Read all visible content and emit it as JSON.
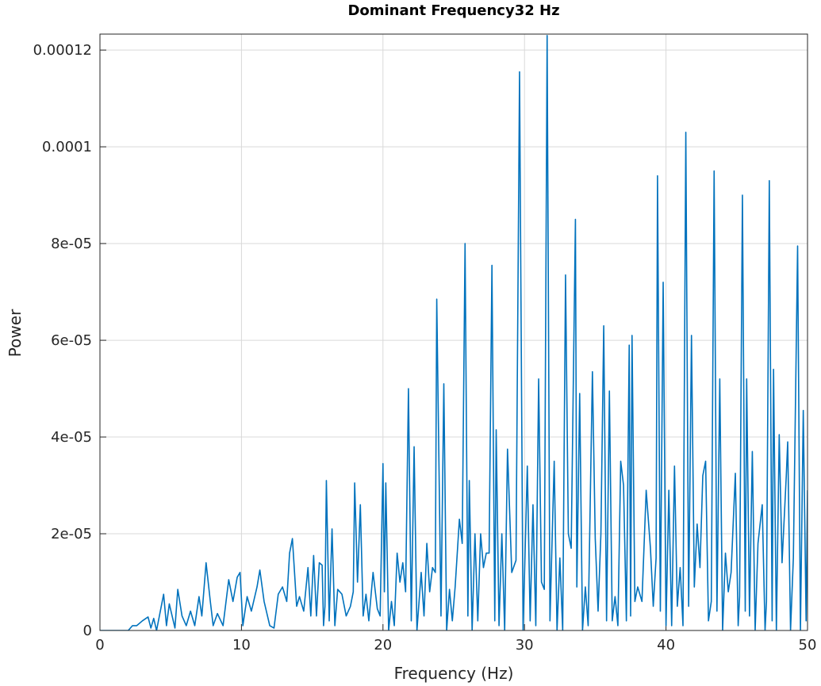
{
  "chart_data": {
    "type": "line",
    "title": "Dominant Frequency32 Hz",
    "xlabel": "Frequency (Hz)",
    "ylabel": "Power",
    "color": "#0072bd",
    "grid": true,
    "xlim": [
      0,
      50
    ],
    "xticks": [
      0,
      10,
      20,
      30,
      40,
      50
    ],
    "ylim": [
      0,
      0.0001233
    ],
    "yticks": [
      0,
      {
        "value": 2e-05,
        "label": "2e-05"
      },
      {
        "value": 4e-05,
        "label": "4e-05"
      },
      {
        "value": 6e-05,
        "label": "6e-05"
      },
      {
        "value": 8e-05,
        "label": "8e-05"
      },
      0.0001,
      0.00012
    ],
    "x": [
      0,
      2,
      2.3,
      2.6,
      3,
      3.4,
      3.6,
      3.8,
      4,
      4.5,
      4.7,
      4.9,
      5.1,
      5.3,
      5.5,
      5.8,
      6.1,
      6.4,
      6.7,
      7,
      7.2,
      7.5,
      7.8,
      8,
      8.3,
      8.7,
      9.1,
      9.4,
      9.7,
      9.9,
      10.1,
      10.4,
      10.7,
      11.1,
      11.3,
      11.6,
      12,
      12.3,
      12.6,
      12.9,
      13.2,
      13.4,
      13.6,
      13.9,
      14.1,
      14.4,
      14.7,
      14.9,
      15.1,
      15.3,
      15.5,
      15.7,
      15.8,
      15.9,
      16,
      16.2,
      16.4,
      16.6,
      16.8,
      17.1,
      17.4,
      17.7,
      17.9,
      18,
      18.2,
      18.4,
      18.6,
      18.8,
      19,
      19.3,
      19.6,
      19.8,
      20,
      20.1,
      20.2,
      20.4,
      20.6,
      20.8,
      21,
      21.2,
      21.4,
      21.6,
      21.8,
      22,
      22.2,
      22.4,
      22.7,
      22.9,
      23.1,
      23.3,
      23.5,
      23.7,
      23.8,
      24.1,
      24.3,
      24.5,
      24.7,
      24.9,
      25.1,
      25.4,
      25.6,
      25.8,
      26,
      26.1,
      26.3,
      26.5,
      26.7,
      26.9,
      27.1,
      27.3,
      27.5,
      27.7,
      27.9,
      28,
      28.2,
      28.4,
      28.6,
      28.8,
      29.1,
      29.4,
      29.65,
      29.9,
      30.2,
      30.4,
      30.6,
      30.8,
      31,
      31.2,
      31.4,
      31.6,
      31.8,
      32.1,
      32.3,
      32.5,
      32.7,
      32.9,
      33.1,
      33.3,
      33.6,
      33.7,
      33.9,
      34.1,
      34.3,
      34.5,
      34.8,
      35,
      35.2,
      35.4,
      35.6,
      35.8,
      36,
      36.2,
      36.4,
      36.6,
      36.8,
      37,
      37.2,
      37.4,
      37.5,
      37.6,
      37.8,
      38,
      38.3,
      38.6,
      38.9,
      39.1,
      39.3,
      39.4,
      39.6,
      39.8,
      40,
      40.2,
      40.4,
      40.6,
      40.8,
      41,
      41.2,
      41.4,
      41.6,
      41.8,
      42,
      42.2,
      42.4,
      42.6,
      42.8,
      43,
      43.2,
      43.4,
      43.6,
      43.8,
      44,
      44.2,
      44.4,
      44.6,
      44.9,
      45.1,
      45.2,
      45.4,
      45.6,
      45.7,
      45.9,
      46.1,
      46.3,
      46.5,
      46.8,
      47,
      47.1,
      47.3,
      47.5,
      47.6,
      47.8,
      48,
      48.2,
      48.5,
      48.6,
      48.8,
      49,
      49.3,
      49.5,
      49.7,
      49.9,
      50
    ],
    "values": [
      0,
      0,
      1e-06,
      1e-06,
      2e-06,
      2.8e-06,
      5e-07,
      2.5e-06,
      0,
      7.5e-06,
      1e-06,
      5.5e-06,
      3e-06,
      5e-07,
      8.5e-06,
      3e-06,
      1e-06,
      4e-06,
      1e-06,
      7e-06,
      3e-06,
      1.4e-05,
      6e-06,
      1e-06,
      3.5e-06,
      1e-06,
      1.05e-05,
      6e-06,
      1.1e-05,
      1.2e-05,
      1e-06,
      7e-06,
      4e-06,
      9e-06,
      1.25e-05,
      6e-06,
      1e-06,
      5e-07,
      7.5e-06,
      9e-06,
      6e-06,
      1.6e-05,
      1.9e-05,
      5e-06,
      7e-06,
      4e-06,
      1.3e-05,
      3e-06,
      1.55e-05,
      3e-06,
      1.4e-05,
      1.35e-05,
      1e-06,
      5e-06,
      3.1e-05,
      2e-06,
      2.1e-05,
      1e-06,
      8.5e-06,
      7.5e-06,
      3e-06,
      5e-06,
      8e-06,
      3.05e-05,
      1e-05,
      2.6e-05,
      3e-06,
      7.5e-06,
      2e-06,
      1.2e-05,
      4.5e-06,
      3e-06,
      3.45e-05,
      8e-06,
      3.05e-05,
      0,
      6e-06,
      1e-06,
      1.6e-05,
      1e-05,
      1.4e-05,
      8e-06,
      5e-05,
      2e-06,
      3.8e-05,
      0,
      1.2e-05,
      3e-06,
      1.8e-05,
      8e-06,
      1.3e-05,
      1.2e-05,
      6.85e-05,
      3e-06,
      5.1e-05,
      0,
      8.5e-06,
      2e-06,
      9e-06,
      2.3e-05,
      1.8e-05,
      8e-05,
      3e-06,
      3.1e-05,
      0,
      2e-05,
      2e-06,
      2e-05,
      1.3e-05,
      1.6e-05,
      1.6e-05,
      7.55e-05,
      2e-06,
      4.15e-05,
      1e-06,
      2e-05,
      0,
      3.75e-05,
      1.2e-05,
      1.45e-05,
      0.0001155,
      0,
      3.4e-05,
      2e-06,
      2.6e-05,
      1e-06,
      5.2e-05,
      1e-05,
      8.5e-06,
      0.000123,
      2e-06,
      3.5e-05,
      0,
      1.5e-05,
      0,
      7.35e-05,
      2e-05,
      1.7e-05,
      8.5e-05,
      9e-06,
      4.9e-05,
      0,
      9e-06,
      1e-06,
      5.35e-05,
      1.9e-05,
      4e-06,
      2e-05,
      6.3e-05,
      2e-06,
      4.95e-05,
      2e-06,
      7e-06,
      1e-06,
      3.5e-05,
      3e-05,
      2e-06,
      5.9e-05,
      3e-06,
      6.1e-05,
      6e-06,
      9e-06,
      6e-06,
      2.9e-05,
      1.7e-05,
      5e-06,
      1.5e-05,
      9.4e-05,
      4e-06,
      7.2e-05,
      1e-06,
      2.9e-05,
      1e-06,
      3.4e-05,
      5e-06,
      1.3e-05,
      1e-06,
      0.000103,
      5e-06,
      6.1e-05,
      9e-06,
      2.2e-05,
      1.3e-05,
      3.2e-05,
      3.5e-05,
      2e-06,
      6e-06,
      9.5e-05,
      4e-06,
      5.2e-05,
      0,
      1.6e-05,
      8e-06,
      1.2e-05,
      3.25e-05,
      1e-06,
      7e-06,
      9e-05,
      4e-06,
      5.2e-05,
      3e-06,
      3.7e-05,
      0,
      1.8e-05,
      2.6e-05,
      0,
      6e-06,
      9.3e-05,
      2e-06,
      5.4e-05,
      0,
      4.05e-05,
      1.4e-05,
      3.2e-05,
      3.9e-05,
      0,
      1.5e-05,
      7.95e-05,
      0,
      4.55e-05,
      2e-06,
      2.9e-05
    ]
  }
}
